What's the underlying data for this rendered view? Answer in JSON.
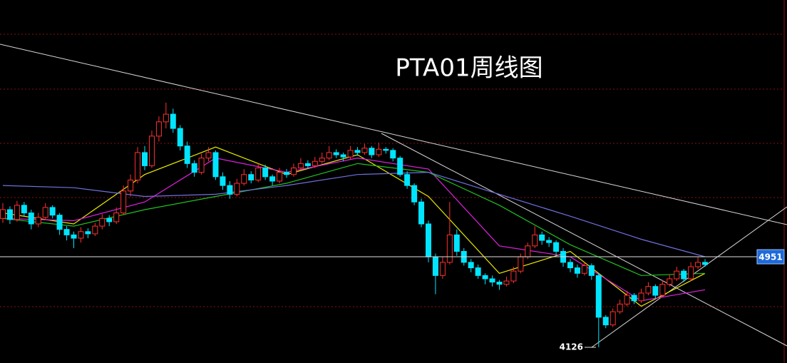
{
  "chart_data": {
    "type": "candlestick",
    "title": "PTA01周线图",
    "up_color": "#ff3030",
    "down_color": "#00e5ff",
    "ylim": [
      3983,
      7290
    ],
    "candles": [
      [
        5300,
        5440,
        5260,
        5380
      ],
      [
        5380,
        5410,
        5250,
        5290
      ],
      [
        5290,
        5460,
        5270,
        5420
      ],
      [
        5420,
        5450,
        5320,
        5350
      ],
      [
        5350,
        5380,
        5200,
        5250
      ],
      [
        5250,
        5350,
        5220,
        5310
      ],
      [
        5310,
        5440,
        5290,
        5400
      ],
      [
        5400,
        5420,
        5300,
        5330
      ],
      [
        5330,
        5350,
        5150,
        5200
      ],
      [
        5200,
        5230,
        5100,
        5150
      ],
      [
        5150,
        5180,
        5030,
        5120
      ],
      [
        5120,
        5220,
        5080,
        5180
      ],
      [
        5180,
        5210,
        5120,
        5160
      ],
      [
        5160,
        5260,
        5140,
        5230
      ],
      [
        5230,
        5340,
        5200,
        5300
      ],
      [
        5300,
        5330,
        5230,
        5270
      ],
      [
        5270,
        5400,
        5250,
        5350
      ],
      [
        5350,
        5600,
        5330,
        5550
      ],
      [
        5550,
        5700,
        5500,
        5650
      ],
      [
        5650,
        5950,
        5620,
        5900
      ],
      [
        5900,
        5960,
        5740,
        5780
      ],
      [
        5780,
        6100,
        5760,
        6050
      ],
      [
        6050,
        6230,
        6000,
        6180
      ],
      [
        6180,
        6355,
        6120,
        6250
      ],
      [
        6250,
        6300,
        6080,
        6120
      ],
      [
        6120,
        6150,
        5920,
        5960
      ],
      [
        5960,
        6000,
        5760,
        5800
      ],
      [
        5800,
        5830,
        5680,
        5720
      ],
      [
        5720,
        5890,
        5700,
        5850
      ],
      [
        5850,
        5950,
        5820,
        5900
      ],
      [
        5900,
        5920,
        5650,
        5680
      ],
      [
        5680,
        5720,
        5560,
        5600
      ],
      [
        5600,
        5640,
        5480,
        5520
      ],
      [
        5520,
        5660,
        5500,
        5620
      ],
      [
        5620,
        5750,
        5600,
        5700
      ],
      [
        5700,
        5730,
        5620,
        5650
      ],
      [
        5650,
        5800,
        5630,
        5760
      ],
      [
        5760,
        5790,
        5650,
        5680
      ],
      [
        5680,
        5700,
        5600,
        5640
      ],
      [
        5640,
        5760,
        5620,
        5720
      ],
      [
        5720,
        5750,
        5670,
        5700
      ],
      [
        5700,
        5800,
        5680,
        5760
      ],
      [
        5760,
        5850,
        5740,
        5800
      ],
      [
        5800,
        5830,
        5750,
        5780
      ],
      [
        5780,
        5860,
        5760,
        5820
      ],
      [
        5820,
        5900,
        5800,
        5850
      ],
      [
        5850,
        5960,
        5830,
        5900
      ],
      [
        5900,
        5930,
        5850,
        5880
      ],
      [
        5880,
        5900,
        5820,
        5860
      ],
      [
        5860,
        5960,
        5840,
        5920
      ],
      [
        5920,
        5950,
        5870,
        5900
      ],
      [
        5900,
        5980,
        5880,
        5940
      ],
      [
        5940,
        5960,
        5850,
        5880
      ],
      [
        5880,
        5990,
        5860,
        5930
      ],
      [
        5930,
        5950,
        5890,
        5920
      ],
      [
        5920,
        5940,
        5820,
        5850
      ],
      [
        5850,
        5870,
        5680,
        5700
      ],
      [
        5700,
        5730,
        5570,
        5600
      ],
      [
        5600,
        5620,
        5420,
        5450
      ],
      [
        5450,
        5480,
        5220,
        5250
      ],
      [
        5250,
        5280,
        4900,
        4950
      ],
      [
        4950,
        4980,
        4610,
        4780
      ],
      [
        4780,
        4950,
        4750,
        4900
      ],
      [
        4900,
        5450,
        4880,
        5150
      ],
      [
        5150,
        5200,
        4960,
        5000
      ],
      [
        5000,
        5030,
        4870,
        4900
      ],
      [
        4900,
        4930,
        4810,
        4850
      ],
      [
        4850,
        4880,
        4750,
        4780
      ],
      [
        4780,
        4800,
        4700,
        4750
      ],
      [
        4750,
        4780,
        4680,
        4720
      ],
      [
        4720,
        4740,
        4650,
        4700
      ],
      [
        4700,
        4770,
        4680,
        4730
      ],
      [
        4730,
        4860,
        4710,
        4820
      ],
      [
        4820,
        4980,
        4800,
        4950
      ],
      [
        4950,
        5080,
        4930,
        5050
      ],
      [
        5050,
        5230,
        5030,
        5150
      ],
      [
        5150,
        5180,
        5060,
        5100
      ],
      [
        5100,
        5130,
        5040,
        5080
      ],
      [
        5080,
        5100,
        4960,
        5000
      ],
      [
        5000,
        5030,
        4860,
        4900
      ],
      [
        4900,
        4930,
        4810,
        4850
      ],
      [
        4850,
        4880,
        4760,
        4800
      ],
      [
        4800,
        4900,
        4780,
        4870
      ],
      [
        4870,
        4890,
        4740,
        4780
      ],
      [
        4780,
        4800,
        4126,
        4400
      ],
      [
        4400,
        4420,
        4300,
        4330
      ],
      [
        4330,
        4480,
        4310,
        4450
      ],
      [
        4450,
        4560,
        4430,
        4520
      ],
      [
        4520,
        4640,
        4500,
        4600
      ],
      [
        4600,
        4620,
        4520,
        4550
      ],
      [
        4550,
        4660,
        4530,
        4620
      ],
      [
        4620,
        4720,
        4600,
        4680
      ],
      [
        4680,
        4700,
        4570,
        4600
      ],
      [
        4600,
        4740,
        4580,
        4700
      ],
      [
        4700,
        4790,
        4680,
        4750
      ],
      [
        4750,
        4860,
        4730,
        4820
      ],
      [
        4820,
        4840,
        4720,
        4750
      ],
      [
        4750,
        4900,
        4730,
        4860
      ],
      [
        4860,
        4951,
        4840,
        4900
      ],
      [
        4900,
        4930,
        4860,
        4880
      ]
    ],
    "series": [
      {
        "color": "#e8e800",
        "x": [
          0,
          10,
          20,
          30,
          40,
          50,
          60,
          70,
          80,
          90,
          99
        ],
        "values": [
          5350,
          5250,
          5700,
          5950,
          5700,
          5880,
          5500,
          4800,
          5000,
          4500,
          4800
        ]
      },
      {
        "color": "#e020e0",
        "x": [
          0,
          10,
          20,
          30,
          40,
          50,
          60,
          70,
          80,
          90,
          99
        ],
        "values": [
          5300,
          5280,
          5450,
          5850,
          5720,
          5850,
          5750,
          5050,
          4950,
          4550,
          4650
        ]
      },
      {
        "color": "#20c020",
        "x": [
          0,
          10,
          20,
          30,
          40,
          50,
          60,
          70,
          80,
          90,
          99
        ],
        "values": [
          5300,
          5230,
          5380,
          5500,
          5620,
          5800,
          5720,
          5420,
          5060,
          4780,
          4800
        ]
      },
      {
        "color": "#7070e0",
        "x": [
          0,
          10,
          20,
          30,
          40,
          50,
          60,
          70,
          80,
          90,
          99
        ],
        "values": [
          5600,
          5580,
          5500,
          5520,
          5600,
          5700,
          5720,
          5520,
          5320,
          5110,
          4951
        ]
      }
    ],
    "price_marks": {
      "last": 4951,
      "low": 4126
    }
  }
}
